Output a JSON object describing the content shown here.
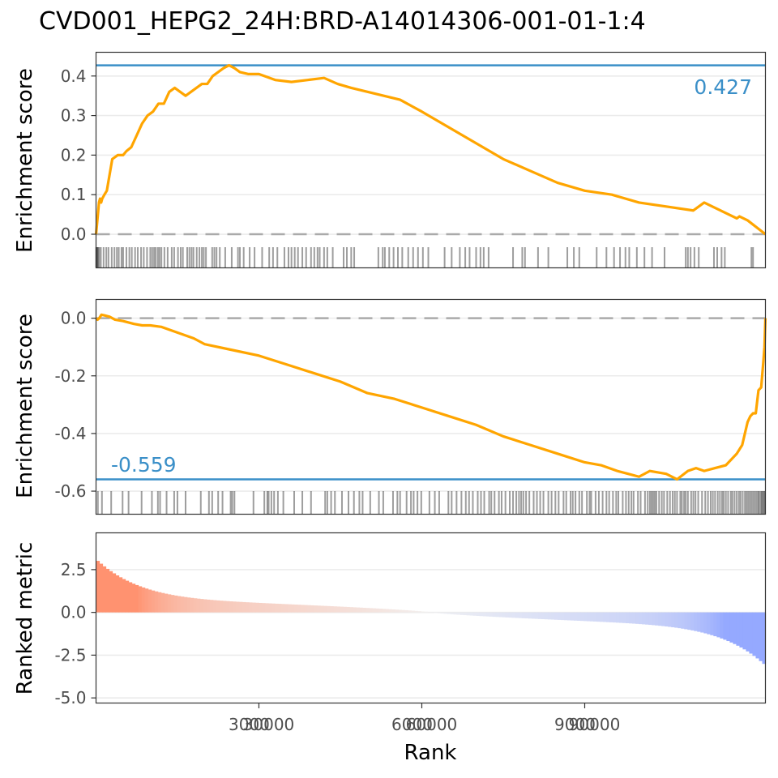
{
  "chart_data": {
    "type": "line",
    "title": "CVD001_HEPG2_24H:BRD-A14014306-001-01-1:4",
    "xlabel": "Rank",
    "x_tick_labels": [
      "3000",
      "30000",
      "6000",
      "60000",
      "9000",
      "90000"
    ],
    "x_range": [
      1,
      12328
    ],
    "panels": [
      {
        "name": "up",
        "ylabel": "Enrichment score",
        "ylim": [
          -0.085,
          0.46
        ],
        "yticks": [
          0.0,
          0.1,
          0.2,
          0.3,
          0.4
        ],
        "ytick_labels": [
          "0.0",
          "0.1",
          "0.2",
          "0.3",
          "0.4"
        ],
        "max_es": 0.427,
        "max_es_label": "0.427",
        "es_color": "#FFA500",
        "line_color": "#3A8FC8",
        "running_es": {
          "rank": [
            1,
            15,
            35,
            55,
            75,
            95,
            115,
            155,
            200,
            300,
            400,
            500,
            560,
            650,
            750,
            850,
            950,
            1050,
            1150,
            1250,
            1350,
            1450,
            1550,
            1650,
            1750,
            1850,
            1950,
            2050,
            2150,
            2250,
            2350,
            2450,
            2550,
            2650,
            2800,
            3000,
            3300,
            3600,
            3900,
            4200,
            4450,
            4700,
            5000,
            5300,
            5600,
            6000,
            6500,
            7000,
            7500,
            8000,
            8500,
            9000,
            9500,
            10000,
            10500,
            11000,
            11200,
            11500,
            11800,
            11850,
            12000,
            12328
          ],
          "es": [
            0.0,
            0.02,
            0.05,
            0.08,
            0.09,
            0.08,
            0.09,
            0.1,
            0.11,
            0.19,
            0.2,
            0.2,
            0.21,
            0.22,
            0.25,
            0.28,
            0.3,
            0.31,
            0.33,
            0.33,
            0.36,
            0.37,
            0.36,
            0.35,
            0.36,
            0.37,
            0.38,
            0.38,
            0.4,
            0.41,
            0.42,
            0.427,
            0.42,
            0.41,
            0.405,
            0.405,
            0.39,
            0.385,
            0.39,
            0.395,
            0.38,
            0.37,
            0.36,
            0.35,
            0.34,
            0.31,
            0.27,
            0.23,
            0.19,
            0.16,
            0.13,
            0.11,
            0.1,
            0.08,
            0.07,
            0.06,
            0.08,
            0.06,
            0.04,
            0.045,
            0.035,
            0.0
          ]
        },
        "hit_ranks": [
          3,
          15,
          25,
          40,
          60,
          90,
          140,
          190,
          230,
          290,
          340,
          385,
          420,
          470,
          500,
          560,
          615,
          660,
          720,
          770,
          830,
          880,
          940,
          1000,
          1035,
          1070,
          1100,
          1140,
          1170,
          1205,
          1260,
          1320,
          1395,
          1440,
          1510,
          1560,
          1600,
          1680,
          1720,
          1760,
          1795,
          1855,
          1905,
          1950,
          1985,
          2025,
          2140,
          2180,
          2220,
          2280,
          2380,
          2500,
          2615,
          2650,
          2720,
          2830,
          2920,
          3060,
          3190,
          3260,
          3340,
          3470,
          3545,
          3600,
          3660,
          3720,
          3800,
          3870,
          3960,
          4020,
          4080,
          4120,
          4200,
          4260,
          4360,
          4560,
          4620,
          4700,
          4755,
          5200,
          5280,
          5320,
          5400,
          5480,
          5560,
          5640,
          5750,
          5840,
          5930,
          6020,
          6120,
          6420,
          6550,
          6700,
          6800,
          6880,
          7000,
          7080,
          7140,
          7230,
          7680,
          7850,
          7900,
          8140,
          8330,
          8680,
          8800,
          8900,
          9220,
          9400,
          9540,
          9650,
          9750,
          9820,
          9960,
          10100,
          10240,
          10470,
          10860,
          10900,
          10950,
          11020,
          11100,
          11380,
          11440,
          11520,
          11580,
          12070,
          12100
        ]
      },
      {
        "name": "down",
        "ylabel": "Enrichment score",
        "ylim": [
          -0.68,
          0.065
        ],
        "yticks": [
          0.0,
          -0.2,
          -0.4,
          -0.6
        ],
        "ytick_labels": [
          "0.0",
          "-0.2",
          "-0.4",
          "-0.6"
        ],
        "max_es": -0.559,
        "max_es_label": "-0.559",
        "es_color": "#FFA500",
        "line_color": "#3A8FC8",
        "running_es": {
          "rank": [
            1,
            30,
            60,
            100,
            150,
            250,
            350,
            500,
            700,
            850,
            1000,
            1200,
            1500,
            1800,
            2000,
            2500,
            3000,
            3500,
            4000,
            4500,
            5000,
            5500,
            6000,
            6500,
            7000,
            7500,
            8000,
            8500,
            9000,
            9300,
            9600,
            9800,
            10000,
            10200,
            10500,
            10700,
            10900,
            11050,
            11200,
            11400,
            11600,
            11800,
            11900,
            12000,
            12050,
            12100,
            12150,
            12200,
            12250,
            12290,
            12310,
            12328
          ],
          "es": [
            0.0,
            -0.005,
            0.0,
            0.012,
            0.01,
            0.005,
            -0.005,
            -0.01,
            -0.02,
            -0.025,
            -0.025,
            -0.03,
            -0.05,
            -0.07,
            -0.09,
            -0.11,
            -0.13,
            -0.16,
            -0.19,
            -0.22,
            -0.26,
            -0.28,
            -0.31,
            -0.34,
            -0.37,
            -0.41,
            -0.44,
            -0.47,
            -0.5,
            -0.51,
            -0.53,
            -0.54,
            -0.55,
            -0.53,
            -0.54,
            -0.559,
            -0.53,
            -0.52,
            -0.53,
            -0.52,
            -0.51,
            -0.47,
            -0.44,
            -0.36,
            -0.34,
            -0.33,
            -0.33,
            -0.25,
            -0.24,
            -0.15,
            -0.1,
            0.0
          ]
        },
        "hit_ranks": [
          35,
          110,
          280,
          490,
          600,
          840,
          1030,
          1140,
          1180,
          1300,
          1440,
          1500,
          1650,
          1930,
          2080,
          2140,
          2250,
          2330,
          2480,
          2510,
          2550,
          2900,
          3100,
          3155,
          3180,
          3230,
          3280,
          3350,
          3450,
          3650,
          3800,
          3960,
          4220,
          4260,
          4330,
          4400,
          4530,
          4650,
          4750,
          4850,
          4910,
          5050,
          5210,
          5290,
          5470,
          5550,
          5600,
          5720,
          5800,
          5850,
          5920,
          5990,
          6140,
          6240,
          6320,
          6490,
          6550,
          6640,
          6730,
          6810,
          6870,
          6940,
          7030,
          7090,
          7150,
          7240,
          7280,
          7340,
          7420,
          7470,
          7540,
          7620,
          7680,
          7740,
          7790,
          7830,
          7870,
          7920,
          7980,
          8060,
          8120,
          8180,
          8240,
          8330,
          8390,
          8460,
          8520,
          8610,
          8660,
          8740,
          8780,
          8830,
          8900,
          8950,
          9040,
          9090,
          9120,
          9200,
          9260,
          9330,
          9400,
          9450,
          9520,
          9580,
          9620,
          9700,
          9760,
          9810,
          9860,
          9900,
          9980,
          10030,
          10110,
          10160,
          10200,
          10230,
          10260,
          10290,
          10320,
          10370,
          10420,
          10460,
          10520,
          10570,
          10620,
          10660,
          10700,
          10760,
          10790,
          10830,
          10860,
          10900,
          10960,
          11000,
          11040,
          11090,
          11160,
          11220,
          11270,
          11320,
          11360,
          11400,
          11450,
          11490,
          11530,
          11560,
          11600,
          11640,
          11690,
          11720,
          11760,
          11800,
          11840,
          11870,
          11910,
          11950,
          11980,
          12010,
          12040,
          12070,
          12100,
          12130,
          12160,
          12190,
          12210,
          12240,
          12260,
          12280,
          12300,
          12315
        ]
      },
      {
        "name": "ranked-metric",
        "ylabel": "Ranked metric",
        "ylim": [
          -5.3,
          4.65
        ],
        "yticks": [
          2.5,
          0.0,
          -2.5,
          -5.0
        ],
        "ytick_labels": [
          "2.5",
          "0.0",
          "-2.5",
          "-5.0"
        ],
        "pos_color": "#FF9270",
        "neutral_color": "#F2F2F2",
        "neg_color": "#95A9FF",
        "metric_range": [
          3.1,
          -3.1
        ]
      }
    ]
  }
}
